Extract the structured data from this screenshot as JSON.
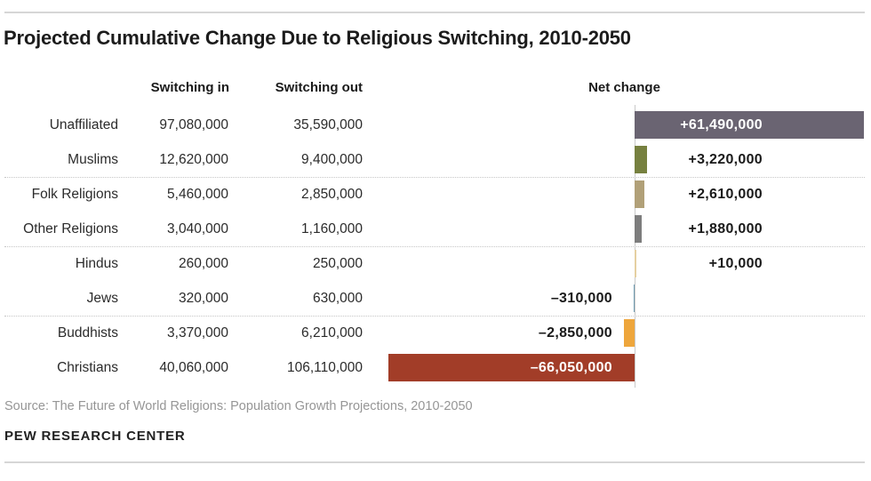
{
  "title": "Projected Cumulative Change Due to Religious Switching, 2010-2050",
  "columns": {
    "switching_in": "Switching in",
    "switching_out": "Switching out",
    "net_change": "Net change"
  },
  "rows": [
    {
      "religion": "Unaffiliated",
      "switching_in": "97,080,000",
      "switching_out": "35,590,000",
      "net_change": "+61,490,000",
      "net_value_m": 61.49,
      "bar_color": "#6a6472",
      "label_inside": true,
      "separator_after": false
    },
    {
      "religion": "Muslims",
      "switching_in": "12,620,000",
      "switching_out": "9,400,000",
      "net_change": "+3,220,000",
      "net_value_m": 3.22,
      "bar_color": "#76803f",
      "label_inside": false,
      "separator_after": true
    },
    {
      "religion": "Folk Religions",
      "switching_in": "5,460,000",
      "switching_out": "2,850,000",
      "net_change": "+2,610,000",
      "net_value_m": 2.61,
      "bar_color": "#b1a078",
      "label_inside": false,
      "separator_after": false
    },
    {
      "religion": "Other Religions",
      "switching_in": "3,040,000",
      "switching_out": "1,160,000",
      "net_change": "+1,880,000",
      "net_value_m": 1.88,
      "bar_color": "#7d7d7d",
      "label_inside": false,
      "separator_after": true
    },
    {
      "religion": "Hindus",
      "switching_in": "260,000",
      "switching_out": "250,000",
      "net_change": "+10,000",
      "net_value_m": 0.01,
      "bar_color": "#e5d0a1",
      "label_inside": false,
      "separator_after": false
    },
    {
      "religion": "Jews",
      "switching_in": "320,000",
      "switching_out": "630,000",
      "net_change": "–310,000",
      "net_value_m": -0.31,
      "bar_color": "#6f9cb2",
      "label_inside": false,
      "separator_after": true
    },
    {
      "religion": "Buddhists",
      "switching_in": "3,370,000",
      "switching_out": "6,210,000",
      "net_change": "–2,850,000",
      "net_value_m": -2.85,
      "bar_color": "#eea63c",
      "label_inside": false,
      "separator_after": false
    },
    {
      "religion": "Christians",
      "switching_in": "40,060,000",
      "switching_out": "106,110,000",
      "net_change": "–66,050,000",
      "net_value_m": -66.05,
      "bar_color": "#a23d28",
      "label_inside": true,
      "separator_after": false
    }
  ],
  "footer": {
    "source": "Source: The Future of World Religions: Population Growth Projections, 2010-2050",
    "brand": "PEW RESEARCH CENTER"
  },
  "colors": {
    "baseline": "#c9c9c9",
    "separator": "#c6c6c6",
    "rule": "#d6d6d6",
    "positive_label": "#1a1a1a",
    "inside_label": "#ffffff",
    "source_text": "#969696"
  },
  "chart_data": {
    "type": "bar",
    "orientation": "horizontal",
    "title": "Projected Cumulative Change Due to Religious Switching, 2010-2050",
    "categories": [
      "Unaffiliated",
      "Muslims",
      "Folk Religions",
      "Other Religions",
      "Hindus",
      "Jews",
      "Buddhists",
      "Christians"
    ],
    "series": [
      {
        "name": "Switching in",
        "values": [
          97080000,
          12620000,
          5460000,
          3040000,
          260000,
          320000,
          3370000,
          40060000
        ]
      },
      {
        "name": "Switching out",
        "values": [
          35590000,
          9400000,
          2850000,
          1160000,
          250000,
          630000,
          6210000,
          106110000
        ]
      },
      {
        "name": "Net change",
        "values": [
          61490000,
          3220000,
          2610000,
          1880000,
          10000,
          -310000,
          -2850000,
          -66050000
        ]
      }
    ],
    "bar_series_plotted": "Net change",
    "xlim": [
      -66050000,
      61490000
    ],
    "baseline": 0,
    "grid": false,
    "legend_position": "none",
    "group_separators_after": [
      "Muslims",
      "Other Religions",
      "Jews"
    ],
    "source": "Source: The Future of World Religions: Population Growth Projections, 2010-2050",
    "branding": "PEW RESEARCH CENTER"
  }
}
